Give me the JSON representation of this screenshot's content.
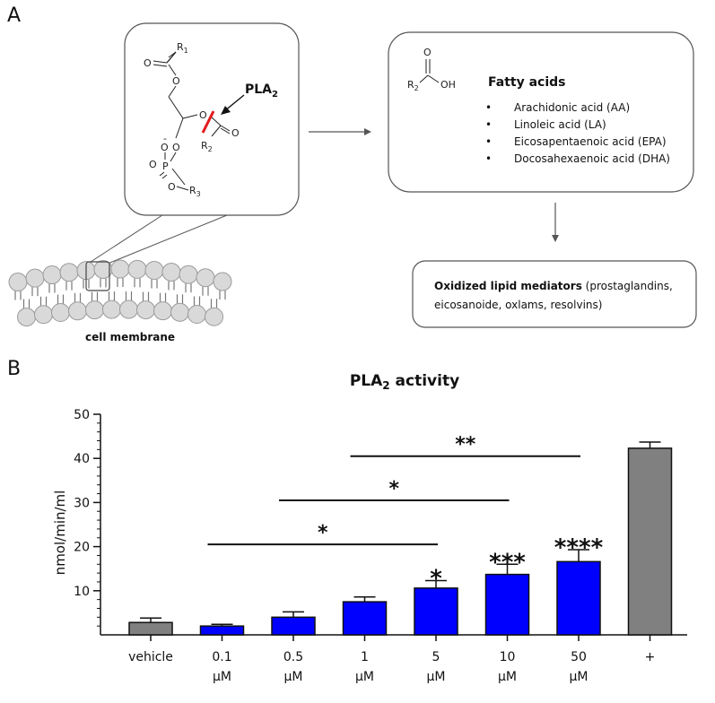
{
  "panel_a": {
    "label": "A",
    "structure": {
      "r1": "R",
      "r1_sub": "1",
      "r2": "R",
      "r2_sub": "2",
      "r3": "R",
      "r3_sub": "3",
      "o": "O",
      "p": "P",
      "charge": "-",
      "enzyme": "PLA",
      "enzyme_sub": "2"
    },
    "membrane_label": "cell membrane",
    "fatty_acids": {
      "r2": "R",
      "r2_sub": "2",
      "o": "O",
      "oh": "OH",
      "title": "Fatty acids",
      "items": [
        "Arachidonic acid (AA)",
        "Linoleic acid (LA)",
        "Eicosapentaenoic acid (EPA)",
        "Docosahexaenoic acid (DHA)"
      ]
    },
    "mediators": {
      "title": "Oxidized lipid mediators",
      "rest_line1": " (prostaglandins,",
      "line2": "eicosanoide, oxlams,  resolvins)"
    }
  },
  "panel_b": {
    "label": "B",
    "chart_data": {
      "type": "bar",
      "title": "PLA",
      "title_sub": "2",
      "title_suffix": " activity",
      "ylabel": "nmol/min/ml",
      "ylim": [
        0,
        50
      ],
      "yticks": [
        10,
        20,
        30,
        40,
        50
      ],
      "categories": [
        {
          "line1": "vehicle",
          "line2": ""
        },
        {
          "line1": "0.1",
          "line2": "µM"
        },
        {
          "line1": "0.5",
          "line2": "µM"
        },
        {
          "line1": "1",
          "line2": "µM"
        },
        {
          "line1": "5",
          "line2": "µM"
        },
        {
          "line1": "10",
          "line2": "µM"
        },
        {
          "line1": "50",
          "line2": "µM"
        },
        {
          "line1": "+",
          "line2": ""
        }
      ],
      "values": [
        2.8,
        2.0,
        4.0,
        7.5,
        10.6,
        13.7,
        16.6,
        42.3
      ],
      "errors": [
        1.0,
        0.4,
        1.2,
        1.1,
        1.7,
        2.3,
        2.7,
        1.4
      ],
      "bar_colors": [
        "#808080",
        "#0000ff",
        "#0000ff",
        "#0000ff",
        "#0000ff",
        "#0000ff",
        "#0000ff",
        "#808080"
      ],
      "bar_marks": [
        "",
        "",
        "",
        "",
        "*",
        "***",
        "****",
        ""
      ],
      "brackets": [
        {
          "from": 1,
          "to": 4,
          "y": 20.5,
          "mark": "*"
        },
        {
          "from": 2,
          "to": 5,
          "y": 30.5,
          "mark": "*"
        },
        {
          "from": 3,
          "to": 6,
          "y": 40.5,
          "mark": "**"
        }
      ],
      "grid": false
    }
  }
}
